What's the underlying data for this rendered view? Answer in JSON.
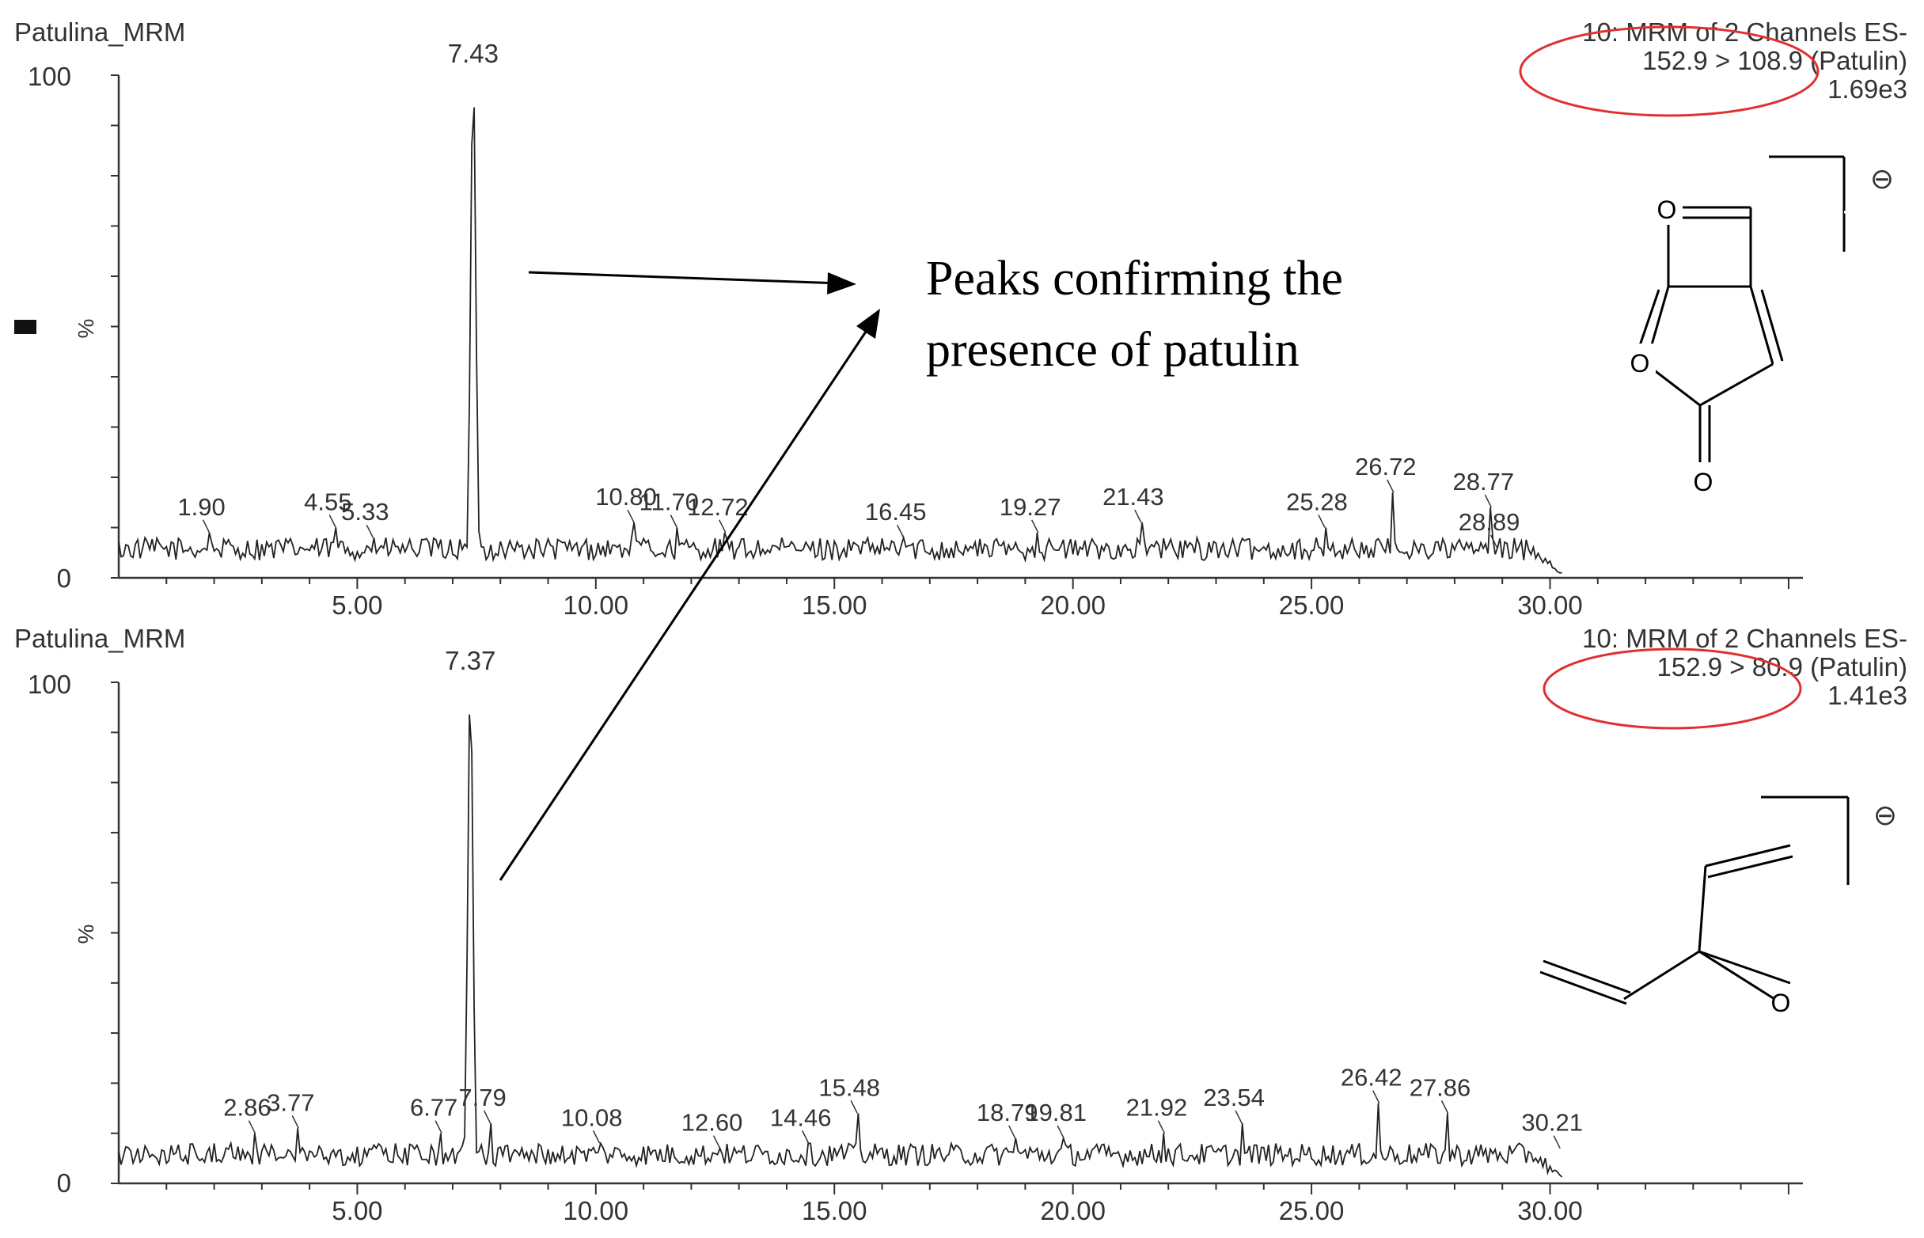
{
  "chart_data": [
    {
      "type": "line",
      "title": "Patulina_MRM",
      "header_right": [
        "10: MRM of 2 Channels ES-",
        "152.9 > 108.9 (Patulin)",
        "1.69e3"
      ],
      "ylabel": "%",
      "xlim": [
        0,
        35.3
      ],
      "ylim": [
        0,
        100
      ],
      "x_ticks": [
        "5.00",
        "10.00",
        "15.00",
        "20.00",
        "25.00",
        "30.00"
      ],
      "y_tick_labels": [
        "0",
        "100"
      ],
      "main_peak": {
        "rt": 7.43,
        "height": 100,
        "label": "7.43"
      },
      "peak_labels": [
        {
          "rt": 1.9,
          "label": "1.90",
          "h": 9
        },
        {
          "rt": 4.55,
          "label": "4.55",
          "h": 10
        },
        {
          "rt": 5.33,
          "label": "5.33",
          "h": 8
        },
        {
          "rt": 10.8,
          "label": "10.80",
          "h": 11
        },
        {
          "rt": 11.7,
          "label": "11.70",
          "h": 10
        },
        {
          "rt": 12.72,
          "label": "12.72",
          "h": 9
        },
        {
          "rt": 16.45,
          "label": "16.45",
          "h": 8
        },
        {
          "rt": 19.27,
          "label": "19.27",
          "h": 9
        },
        {
          "rt": 21.43,
          "label": "21.43",
          "h": 11
        },
        {
          "rt": 25.28,
          "label": "25.28",
          "h": 10
        },
        {
          "rt": 26.72,
          "label": "26.72",
          "h": 17
        },
        {
          "rt": 28.77,
          "label": "28.77",
          "h": 14
        },
        {
          "rt": 28.89,
          "label": "28.89",
          "h": 6
        }
      ],
      "trace_end": 30.3
    },
    {
      "type": "line",
      "title": "Patulina_MRM",
      "header_right": [
        "10: MRM of 2 Channels ES-",
        "152.9 > 80.9 (Patulin)",
        "1.41e3"
      ],
      "ylabel": "%",
      "xlim": [
        0,
        35.3
      ],
      "ylim": [
        0,
        100
      ],
      "x_ticks": [
        "5.00",
        "10.00",
        "15.00",
        "20.00",
        "25.00",
        "30.00"
      ],
      "y_tick_labels": [
        "0",
        "100"
      ],
      "main_peak": {
        "rt": 7.37,
        "height": 100,
        "label": "7.37"
      },
      "peak_labels": [
        {
          "rt": 2.86,
          "label": "2.86",
          "h": 10
        },
        {
          "rt": 3.77,
          "label": "3.77",
          "h": 11
        },
        {
          "rt": 6.77,
          "label": "6.77",
          "h": 10
        },
        {
          "rt": 7.79,
          "label": "7.79",
          "h": 12
        },
        {
          "rt": 10.08,
          "label": "10.08",
          "h": 8
        },
        {
          "rt": 12.6,
          "label": "12.60",
          "h": 7
        },
        {
          "rt": 14.46,
          "label": "14.46",
          "h": 8
        },
        {
          "rt": 15.48,
          "label": "15.48",
          "h": 14
        },
        {
          "rt": 18.79,
          "label": "18.79",
          "h": 9
        },
        {
          "rt": 19.81,
          "label": "19.81",
          "h": 9
        },
        {
          "rt": 21.92,
          "label": "21.92",
          "h": 10
        },
        {
          "rt": 23.54,
          "label": "23.54",
          "h": 12
        },
        {
          "rt": 26.42,
          "label": "26.42",
          "h": 16
        },
        {
          "rt": 27.86,
          "label": "27.86",
          "h": 14
        },
        {
          "rt": 30.21,
          "label": "30.21",
          "h": 7
        }
      ],
      "trace_end": 30.3
    }
  ],
  "annotation": {
    "text_lines": [
      "Peaks confirming the",
      "presence of patulin"
    ]
  },
  "structures": {
    "top": {
      "atoms": [
        "O",
        "O",
        "O"
      ],
      "charge": "⊖"
    },
    "bottom": {
      "atoms": [
        "O"
      ],
      "charge": "⊖"
    }
  },
  "colors": {
    "trace": "#222222",
    "highlight_ellipse": "#e03030"
  }
}
